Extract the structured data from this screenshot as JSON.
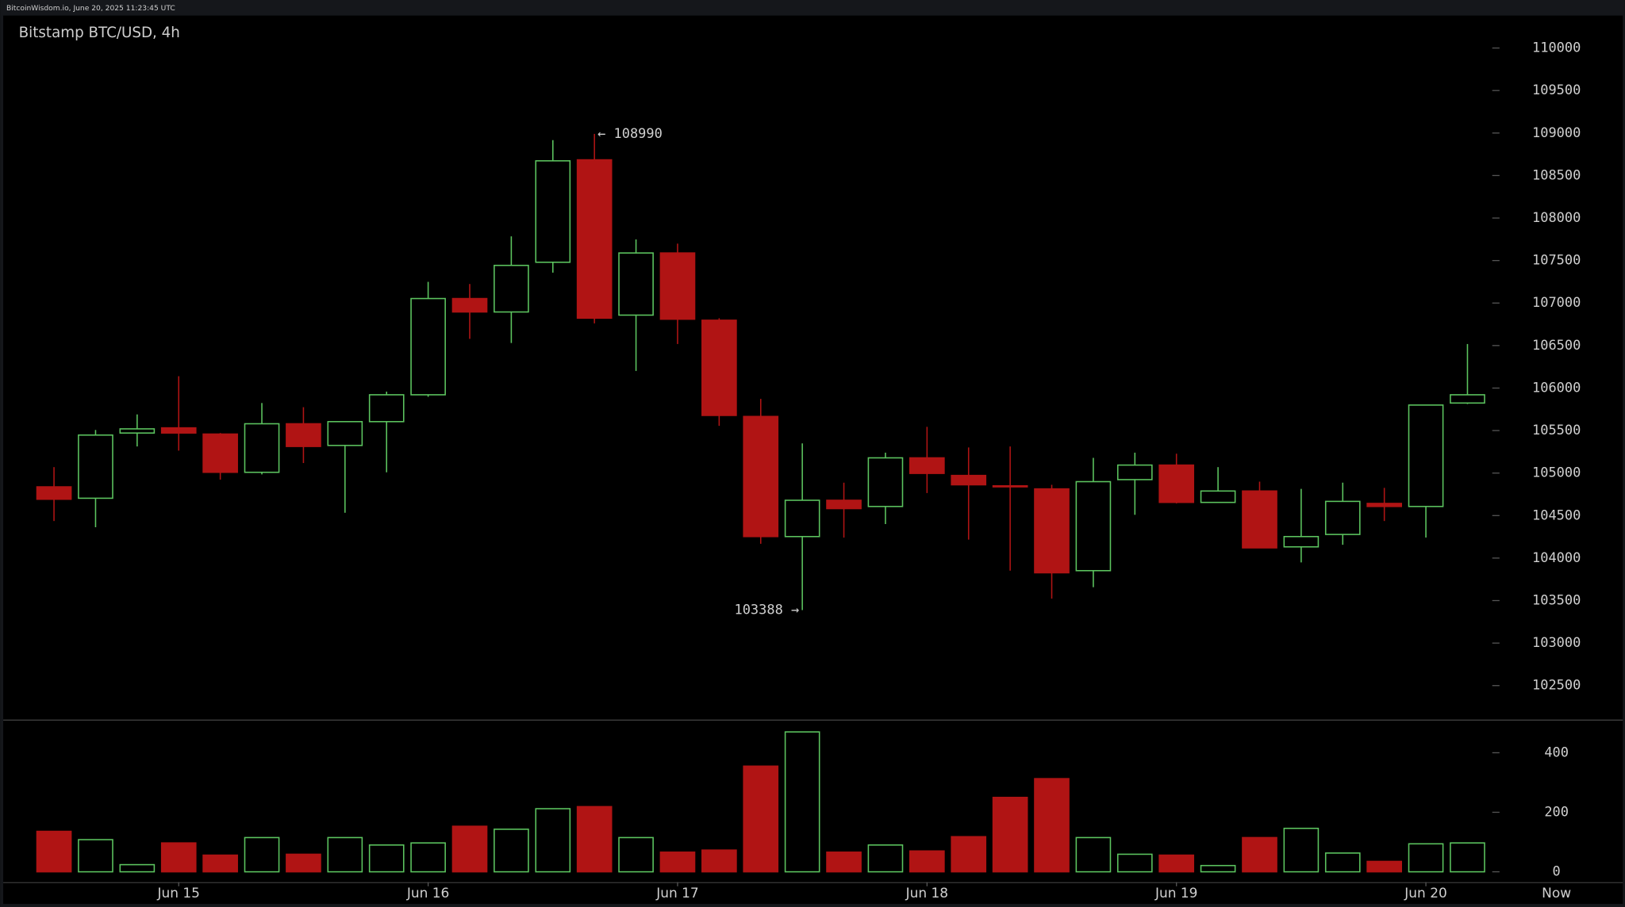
{
  "header": "BitcoinWisdom.io, June 20, 2025 11:23:45 UTC",
  "chart_data": {
    "type": "candlestick",
    "title": "Bitstamp BTC/USD, 4h",
    "categories": [
      null,
      null,
      null,
      "Jun 15",
      null,
      null,
      null,
      null,
      null,
      "Jun 16",
      null,
      null,
      null,
      null,
      null,
      "Jun 17",
      null,
      null,
      null,
      null,
      null,
      "Jun 18",
      null,
      null,
      null,
      null,
      null,
      "Jun 19",
      null,
      null,
      null,
      null,
      null,
      "Jun 20",
      null
    ],
    "x_end_label": "Now",
    "open": [
      104838,
      104704,
      105471,
      105532,
      105459,
      105009,
      105580,
      105325,
      105605,
      105921,
      107053,
      106895,
      107480,
      108685,
      106858,
      107589,
      106798,
      105666,
      104253,
      104680,
      104607,
      105179,
      104972,
      104850,
      104814,
      103852,
      104923,
      105094,
      104655,
      104789,
      104132,
      104278,
      104643,
      104607,
      105824
    ],
    "high": [
      105070,
      105507,
      105690,
      106140,
      105471,
      105824,
      105775,
      105605,
      105958,
      107249,
      107224,
      107784,
      108917,
      108990,
      107748,
      107699,
      106822,
      105873,
      105349,
      104887,
      105240,
      105544,
      105301,
      105313,
      104862,
      105179,
      105240,
      105228,
      105070,
      104899,
      104814,
      104887,
      104826,
      105800,
      106518
    ],
    "low": [
      104436,
      104363,
      105313,
      105264,
      104923,
      104984,
      105118,
      104533,
      105009,
      105897,
      106579,
      106530,
      107358,
      106761,
      106201,
      106518,
      105556,
      104168,
      103388,
      104241,
      104400,
      104765,
      104217,
      103852,
      103523,
      103657,
      104509,
      104643,
      104655,
      104120,
      103949,
      104156,
      104436,
      104241,
      105812
    ],
    "close": [
      104692,
      105447,
      105520,
      105471,
      105009,
      105580,
      105313,
      105605,
      105921,
      107053,
      106895,
      107443,
      108673,
      106822,
      107589,
      106810,
      105678,
      104253,
      104680,
      104582,
      105179,
      104996,
      104862,
      104838,
      103827,
      104899,
      105094,
      104655,
      104789,
      104120,
      104253,
      104667,
      104607,
      105800,
      105921
    ],
    "up_color": "#5cc45f",
    "down_color": "#b01414",
    "ylim": [
      102100,
      110370
    ],
    "yticks": [
      102500,
      103000,
      103500,
      104000,
      104500,
      105000,
      105500,
      106000,
      106500,
      107000,
      107500,
      108000,
      108500,
      109000,
      109500,
      110000
    ],
    "annotations": [
      {
        "text": "← 108990",
        "value": 108990,
        "index": 13
      },
      {
        "text": "103388 →",
        "value": 103388,
        "index": 18
      }
    ],
    "volume": {
      "values": [
        136,
        108,
        24,
        97,
        56,
        115,
        59,
        115,
        90,
        97,
        153,
        143,
        212,
        219,
        115,
        66,
        73,
        355,
        470,
        66,
        90,
        70,
        118,
        250,
        313,
        115,
        59,
        56,
        21,
        115,
        146,
        63,
        35,
        94,
        97
      ],
      "ylim": [
        0,
        494
      ],
      "yticks": [
        0,
        200,
        400
      ]
    }
  }
}
